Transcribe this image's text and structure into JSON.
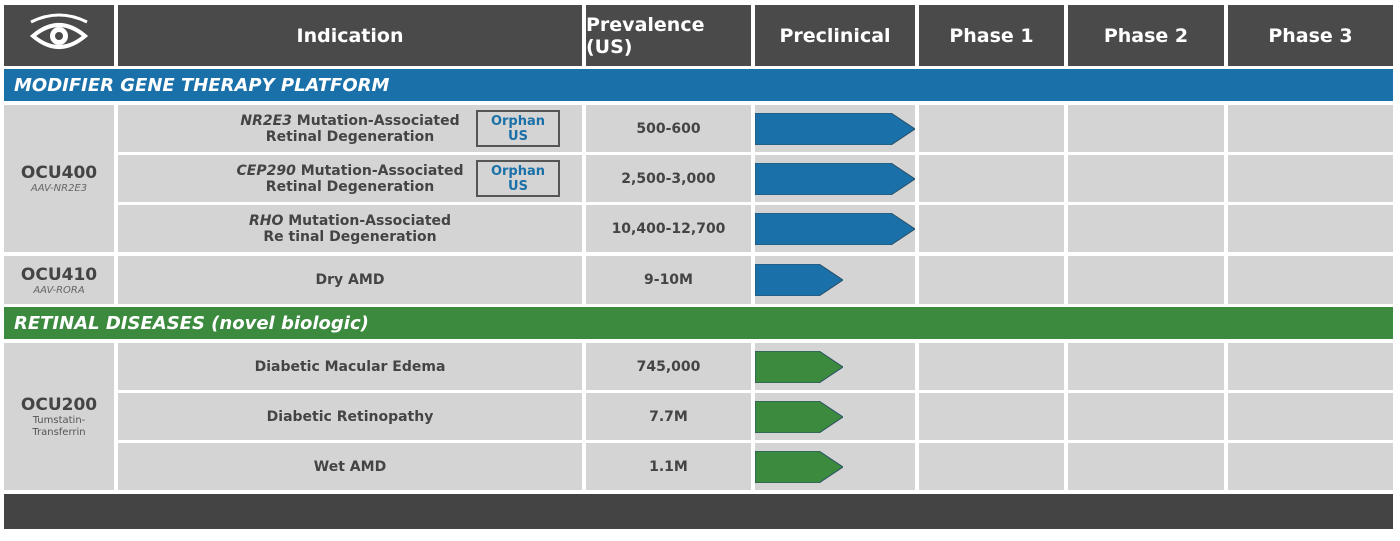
{
  "header": {
    "logo_icon": "eye-logo-icon",
    "columns": [
      "Indication",
      "Prevalence (US)",
      "Preclinical",
      "Phase 1",
      "Phase 2",
      "Phase 3"
    ]
  },
  "colors": {
    "blue": "#1a70a8",
    "green": "#3b8a3e",
    "header": "#4a4a4a"
  },
  "sections": [
    {
      "title": "MODIFIER GENE THERAPY PLATFORM"
    },
    {
      "title": "RETINAL DISEASES (novel biologic)"
    }
  ],
  "programs": [
    {
      "name": "OCU400",
      "sub": "AAV-NR2E3"
    },
    {
      "name": "OCU410",
      "sub": "AAV-RORA"
    },
    {
      "name": "OCU200",
      "sub_line1": "Tumstatin-",
      "sub_line2": "Transferrin"
    }
  ],
  "rows": [
    {
      "gene": "NR2E3",
      "line1": " Mutation-Associated",
      "line2": "Retinal Degeneration",
      "badge1": "Orphan",
      "badge2": "US",
      "prevalence": "500-600",
      "stage": "Preclinical",
      "progress": 1.0,
      "color": "blue"
    },
    {
      "gene": "CEP290",
      "line1": " Mutation-Associated",
      "line2": "Retinal Degeneration",
      "badge1": "Orphan",
      "badge2": "US",
      "prevalence": "2,500-3,000",
      "stage": "Preclinical",
      "progress": 1.0,
      "color": "blue"
    },
    {
      "gene": "RHO",
      "line1": " Mutation-Associated",
      "line2": "Re tinal Degeneration",
      "prevalence": "10,400-12,700",
      "stage": "Preclinical",
      "progress": 1.0,
      "color": "blue"
    },
    {
      "line1": "Dry AMD",
      "prevalence": "9-10M",
      "stage": "Preclinical",
      "progress": 0.55,
      "color": "blue"
    },
    {
      "line1": "Diabetic Macular Edema",
      "prevalence": "745,000",
      "stage": "Preclinical",
      "progress": 0.55,
      "color": "green"
    },
    {
      "line1": "Diabetic Retinopathy",
      "prevalence": "7.7M",
      "stage": "Preclinical",
      "progress": 0.55,
      "color": "green"
    },
    {
      "line1": "Wet AMD",
      "prevalence": "1.1M",
      "stage": "Preclinical",
      "progress": 0.55,
      "color": "green"
    }
  ]
}
